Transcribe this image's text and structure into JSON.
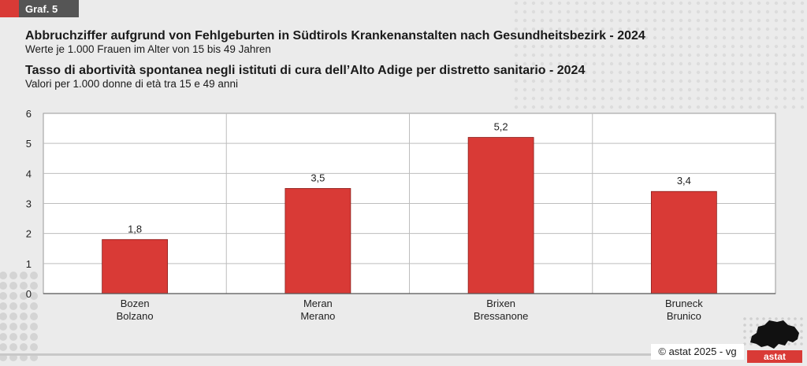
{
  "badge": {
    "label": "Graf. 5"
  },
  "titles": {
    "de_title": "Abbruchziffer aufgrund von Fehlgeburten in Südtirols Krankenanstalten nach Gesundheitsbezirk - 2024",
    "de_subtitle": "Werte je 1.000 Frauen im Alter von 15 bis 49 Jahren",
    "it_title": "Tasso di abortività spontanea negli istituti di cura dell’Alto Adige per distretto sanitario - 2024",
    "it_subtitle": "Valori per 1.000 donne di età tra 15 e 49 anni"
  },
  "colors": {
    "bar": "#d93a36",
    "accent": "#d93a36",
    "badge_bg": "#555555"
  },
  "chart_data": {
    "type": "bar",
    "categories": [
      {
        "de": "Bozen",
        "it": "Bolzano"
      },
      {
        "de": "Meran",
        "it": "Merano"
      },
      {
        "de": "Brixen",
        "it": "Bressanone"
      },
      {
        "de": "Bruneck",
        "it": "Brunico"
      }
    ],
    "values": [
      1.8,
      3.5,
      5.2,
      3.4
    ],
    "value_labels": [
      "1,8",
      "3,5",
      "5,2",
      "3,4"
    ],
    "yticks": [
      "0",
      "1",
      "2",
      "3",
      "4",
      "5",
      "6"
    ],
    "ylim": [
      0,
      6
    ],
    "grid": true,
    "legend": "none"
  },
  "footer": {
    "copyright": "© astat 2025 - vg",
    "logo_text": "astat"
  }
}
